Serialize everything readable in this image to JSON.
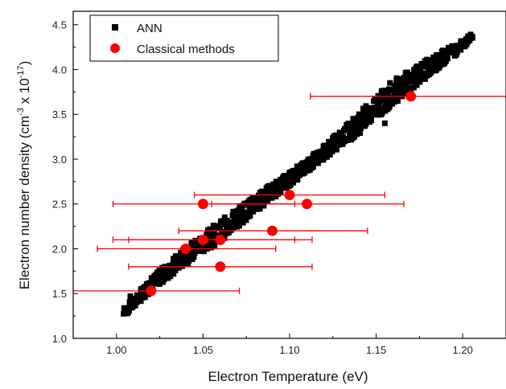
{
  "chart_data": {
    "type": "scatter",
    "title": "",
    "xlabel": "Electron Temperature (eV)",
    "ylabel": "Electron number density (cm",
    "ylabel_sup1": "-3",
    "ylabel_mid": " x 10",
    "ylabel_sup2": "-17",
    "ylabel_end": ")",
    "xlim": [
      0.975,
      1.225
    ],
    "ylim": [
      1.0,
      4.65
    ],
    "xticks": [
      1.0,
      1.05,
      1.1,
      1.15,
      1.2
    ],
    "xtick_labels": [
      "1.00",
      "1.05",
      "1.10",
      "1.15",
      "1.20"
    ],
    "yticks": [
      1.0,
      1.5,
      2.0,
      2.5,
      3.0,
      3.5,
      4.0,
      4.5
    ],
    "ytick_labels": [
      "1.0",
      "1.5",
      "2.0",
      "2.5",
      "3.0",
      "3.5",
      "4.0",
      "4.5"
    ],
    "grid": false,
    "legend_position": "top-left",
    "series": [
      {
        "name": "ANN",
        "marker": "square",
        "color": "#000000",
        "band": {
          "x": [
            1.005,
            1.02,
            1.04,
            1.06,
            1.08,
            1.1,
            1.12,
            1.14,
            1.16,
            1.18,
            1.2,
            1.205
          ],
          "y": [
            1.3,
            1.6,
            1.92,
            2.2,
            2.5,
            2.78,
            3.08,
            3.4,
            3.75,
            4.02,
            4.28,
            4.38
          ],
          "spread": [
            0.05,
            0.08,
            0.1,
            0.12,
            0.1,
            0.08,
            0.08,
            0.12,
            0.14,
            0.1,
            0.06,
            0.03
          ]
        },
        "outliers": [
          {
            "x": 1.008,
            "y": 1.47
          },
          {
            "x": 1.155,
            "y": 3.4
          },
          {
            "x": 1.165,
            "y": 3.7
          },
          {
            "x": 1.158,
            "y": 3.85
          },
          {
            "x": 1.15,
            "y": 3.65
          }
        ]
      },
      {
        "name": "Classical methods",
        "marker": "circle",
        "color": "#ff0000",
        "points": [
          {
            "x": 1.02,
            "y": 1.53,
            "xerr_low": 0.95,
            "xerr_high": 1.071
          },
          {
            "x": 1.04,
            "y": 2.0,
            "xerr_low": 0.989,
            "xerr_high": 1.092
          },
          {
            "x": 1.05,
            "y": 2.1,
            "xerr_low": 0.998,
            "xerr_high": 1.103
          },
          {
            "x": 1.06,
            "y": 2.1,
            "xerr_low": 1.007,
            "xerr_high": 1.113
          },
          {
            "x": 1.06,
            "y": 1.8,
            "xerr_low": 1.007,
            "xerr_high": 1.113
          },
          {
            "x": 1.09,
            "y": 2.2,
            "xerr_low": 1.036,
            "xerr_high": 1.145
          },
          {
            "x": 1.05,
            "y": 2.5,
            "xerr_low": 0.998,
            "xerr_high": 1.103
          },
          {
            "x": 1.1,
            "y": 2.6,
            "xerr_low": 1.045,
            "xerr_high": 1.155
          },
          {
            "x": 1.11,
            "y": 2.5,
            "xerr_low": 1.055,
            "xerr_high": 1.166
          },
          {
            "x": 1.17,
            "y": 3.7,
            "xerr_low": 1.112,
            "xerr_high": 1.229
          }
        ]
      }
    ]
  }
}
